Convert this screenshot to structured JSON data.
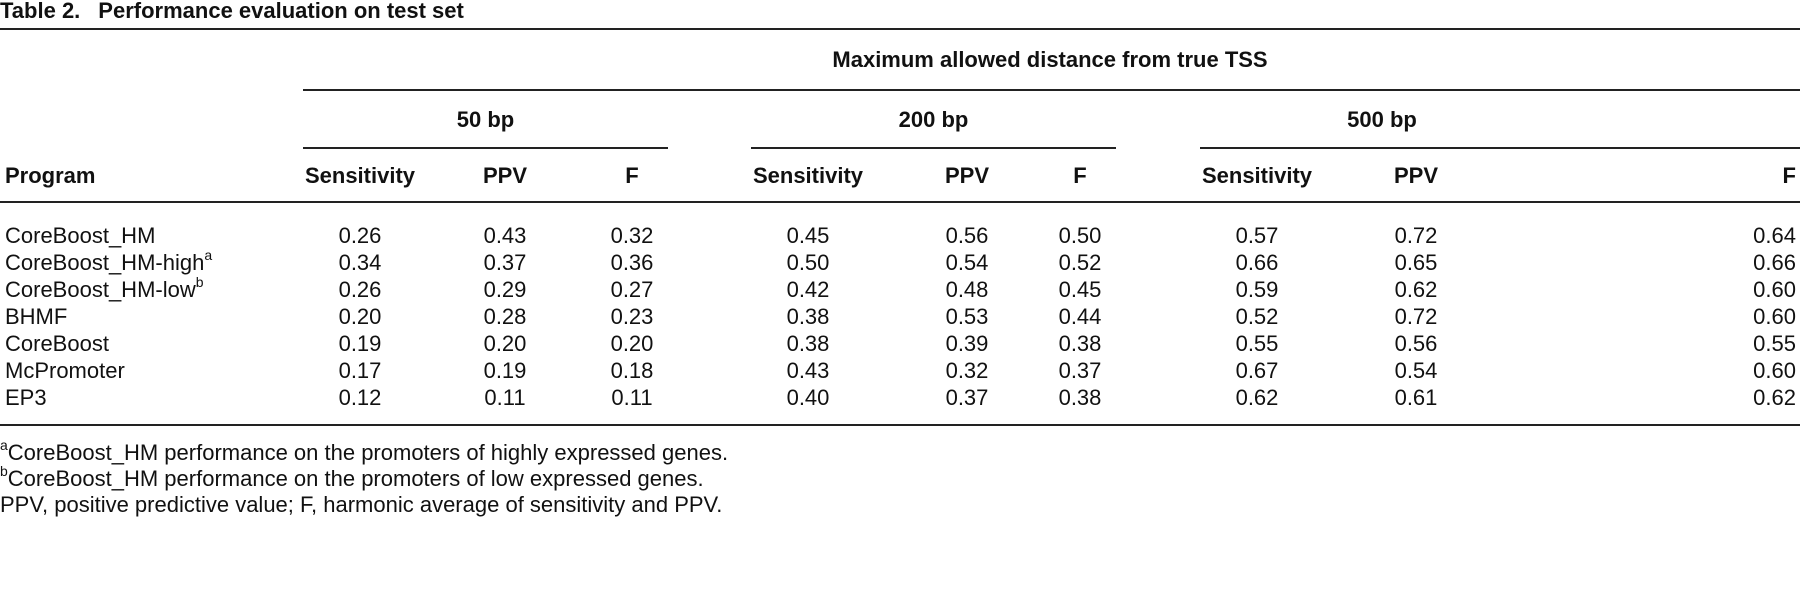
{
  "table": {
    "label": "Table 2.",
    "title": "Performance evaluation on test set",
    "spanner": "Maximum allowed distance from true TSS",
    "groups": [
      "50 bp",
      "200 bp",
      "500 bp"
    ],
    "program_header": "Program",
    "metrics": [
      "Sensitivity",
      "PPV",
      "F"
    ],
    "rows": [
      {
        "program": "CoreBoost_HM",
        "sup": "",
        "values": [
          "0.26",
          "0.43",
          "0.32",
          "0.45",
          "0.56",
          "0.50",
          "0.57",
          "0.72",
          "0.64"
        ]
      },
      {
        "program": "CoreBoost_HM-high",
        "sup": "a",
        "values": [
          "0.34",
          "0.37",
          "0.36",
          "0.50",
          "0.54",
          "0.52",
          "0.66",
          "0.65",
          "0.66"
        ]
      },
      {
        "program": "CoreBoost_HM-low",
        "sup": "b",
        "values": [
          "0.26",
          "0.29",
          "0.27",
          "0.42",
          "0.48",
          "0.45",
          "0.59",
          "0.62",
          "0.60"
        ]
      },
      {
        "program": "BHMF",
        "sup": "",
        "values": [
          "0.20",
          "0.28",
          "0.23",
          "0.38",
          "0.53",
          "0.44",
          "0.52",
          "0.72",
          "0.60"
        ]
      },
      {
        "program": "CoreBoost",
        "sup": "",
        "values": [
          "0.19",
          "0.20",
          "0.20",
          "0.38",
          "0.39",
          "0.38",
          "0.55",
          "0.56",
          "0.55"
        ]
      },
      {
        "program": "McPromoter",
        "sup": "",
        "values": [
          "0.17",
          "0.19",
          "0.18",
          "0.43",
          "0.32",
          "0.37",
          "0.67",
          "0.54",
          "0.60"
        ]
      },
      {
        "program": "EP3",
        "sup": "",
        "values": [
          "0.12",
          "0.11",
          "0.11",
          "0.40",
          "0.37",
          "0.38",
          "0.62",
          "0.61",
          "0.62"
        ]
      }
    ],
    "footnotes": [
      {
        "mark": "a",
        "text": "CoreBoost_HM performance on the promoters of highly expressed genes."
      },
      {
        "mark": "b",
        "text": "CoreBoost_HM performance on the promoters of low expressed genes."
      },
      {
        "mark": "",
        "text": "PPV, positive predictive value; F, harmonic average of sensitivity and PPV."
      }
    ]
  }
}
